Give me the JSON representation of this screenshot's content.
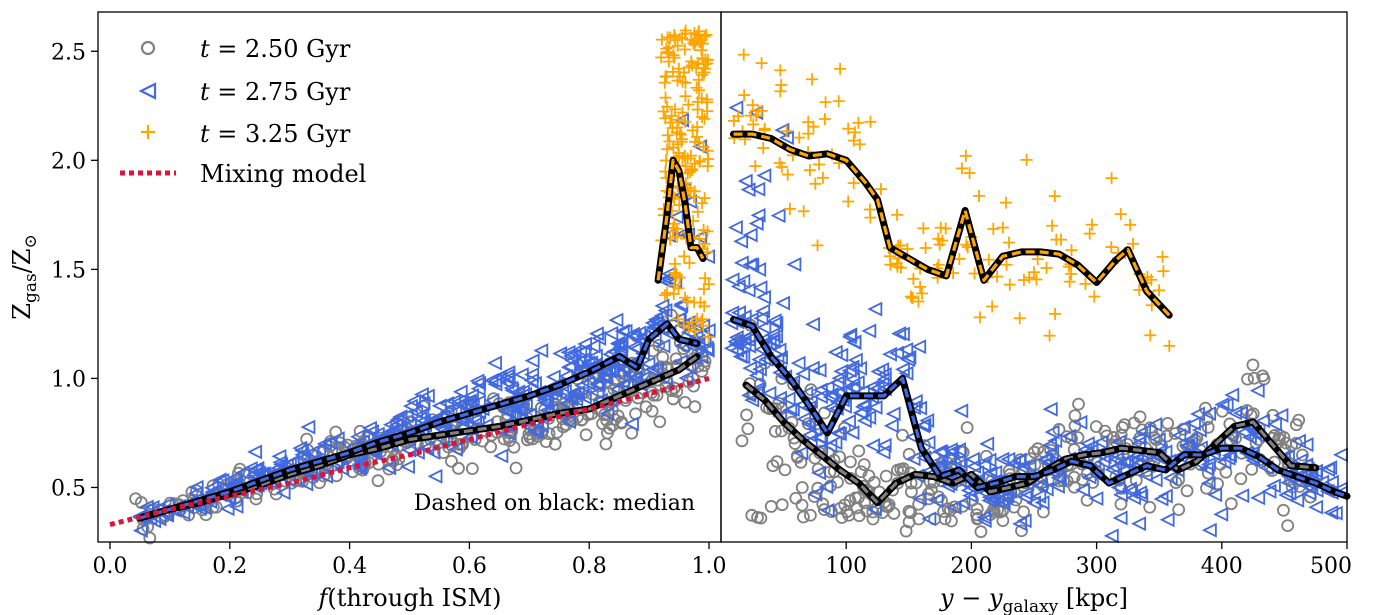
{
  "chart_data": [
    {
      "type": "scatter",
      "xlabel": "f(through ISM)",
      "ylabel": "Z_gas / Z_⊙",
      "xlim": [
        -0.02,
        1.02
      ],
      "ylim": [
        0.25,
        2.68
      ],
      "xticks": [
        0.0,
        0.2,
        0.4,
        0.6,
        0.8,
        1.0
      ],
      "xtick_labels": [
        "0.0",
        "0.2",
        "0.4",
        "0.6",
        "0.8",
        "1.0"
      ],
      "yticks": [
        0.5,
        1.0,
        1.5,
        2.0,
        2.5
      ],
      "ytick_labels": [
        "0.5",
        "1.0",
        "1.5",
        "2.0",
        "2.5"
      ],
      "annotation": "Dashed on black: median",
      "grid": false,
      "legend": {
        "placement": "top-left",
        "entries": [
          {
            "label_prefix": "t",
            "label_suffix": " = 2.50 Gyr",
            "marker": "circle",
            "color": "#808080"
          },
          {
            "label_prefix": "t",
            "label_suffix": " = 2.75 Gyr",
            "marker": "triangle-left",
            "color": "#4169E1"
          },
          {
            "label_prefix": "t",
            "label_suffix": " = 3.25 Gyr",
            "marker": "plus",
            "color": "#FFA500"
          },
          {
            "label_prefix": "",
            "label_suffix": "Mixing model",
            "marker": "dotted-line",
            "color": "#DC143C"
          }
        ]
      },
      "series": [
        {
          "name": "t = 2.50 Gyr",
          "color": "#808080",
          "median_x": [
            0.05,
            0.1,
            0.15,
            0.2,
            0.25,
            0.3,
            0.35,
            0.4,
            0.45,
            0.5,
            0.55,
            0.6,
            0.65,
            0.7,
            0.75,
            0.8,
            0.85,
            0.9,
            0.95,
            0.98
          ],
          "median_y": [
            0.36,
            0.4,
            0.43,
            0.47,
            0.51,
            0.56,
            0.6,
            0.65,
            0.68,
            0.72,
            0.74,
            0.76,
            0.78,
            0.81,
            0.84,
            0.86,
            0.92,
            0.98,
            1.04,
            1.1
          ]
        },
        {
          "name": "t = 2.75 Gyr",
          "color": "#4169E1",
          "median_x": [
            0.05,
            0.1,
            0.15,
            0.2,
            0.25,
            0.3,
            0.35,
            0.4,
            0.45,
            0.5,
            0.55,
            0.6,
            0.65,
            0.7,
            0.75,
            0.8,
            0.85,
            0.88,
            0.9,
            0.93,
            0.95,
            0.98
          ],
          "median_y": [
            0.36,
            0.4,
            0.44,
            0.48,
            0.53,
            0.58,
            0.62,
            0.66,
            0.71,
            0.75,
            0.8,
            0.84,
            0.88,
            0.92,
            0.97,
            1.03,
            1.1,
            1.05,
            1.18,
            1.25,
            1.18,
            1.16
          ]
        },
        {
          "name": "t = 3.25 Gyr",
          "color": "#FFA500",
          "median_x": [
            0.915,
            0.93,
            0.94,
            0.95,
            0.96,
            0.97,
            0.98,
            0.99
          ],
          "median_y": [
            1.45,
            1.75,
            2.0,
            1.95,
            1.8,
            1.6,
            1.6,
            1.55
          ]
        },
        {
          "name": "Mixing model",
          "color": "#DC143C",
          "x": [
            0.0,
            0.1,
            0.2,
            0.3,
            0.4,
            0.5,
            0.6,
            0.7,
            0.8,
            0.9,
            1.0
          ],
          "y": [
            0.33,
            0.4,
            0.46,
            0.52,
            0.59,
            0.65,
            0.72,
            0.79,
            0.86,
            0.93,
            1.0
          ]
        }
      ]
    },
    {
      "type": "scatter",
      "xlabel": "y − y_galaxy [kpc]",
      "ylabel": "",
      "xlim": [
        0,
        500
      ],
      "ylim": [
        0.25,
        2.68
      ],
      "xticks": [
        100,
        200,
        300,
        400,
        500
      ],
      "xtick_labels": [
        "100",
        "200",
        "300",
        "400",
        "500"
      ],
      "grid": false,
      "series": [
        {
          "name": "t = 2.50 Gyr",
          "color": "#808080",
          "median_x": [
            20,
            35,
            50,
            65,
            80,
            95,
            110,
            125,
            140,
            155,
            170,
            185,
            200,
            215,
            230,
            245,
            260,
            275,
            290,
            305,
            320,
            335,
            350,
            365,
            380,
            395,
            410,
            425,
            440,
            455,
            475
          ],
          "median_y": [
            0.97,
            0.9,
            0.8,
            0.72,
            0.65,
            0.58,
            0.52,
            0.43,
            0.52,
            0.56,
            0.55,
            0.52,
            0.56,
            0.48,
            0.5,
            0.52,
            0.58,
            0.63,
            0.65,
            0.66,
            0.68,
            0.67,
            0.66,
            0.58,
            0.62,
            0.7,
            0.78,
            0.8,
            0.7,
            0.6,
            0.59
          ]
        },
        {
          "name": "t = 2.75 Gyr",
          "color": "#4169E1",
          "median_x": [
            10,
            25,
            40,
            55,
            70,
            85,
            100,
            115,
            130,
            145,
            160,
            175,
            190,
            205,
            220,
            235,
            250,
            265,
            280,
            295,
            310,
            325,
            340,
            355,
            370,
            385,
            400,
            415,
            430,
            445,
            460,
            475,
            490,
            500
          ],
          "median_y": [
            1.27,
            1.24,
            1.1,
            1.0,
            0.88,
            0.75,
            0.92,
            0.92,
            0.92,
            1.0,
            0.68,
            0.55,
            0.58,
            0.5,
            0.52,
            0.55,
            0.55,
            0.58,
            0.62,
            0.6,
            0.52,
            0.56,
            0.6,
            0.58,
            0.65,
            0.65,
            0.68,
            0.68,
            0.64,
            0.58,
            0.55,
            0.52,
            0.48,
            0.46
          ]
        },
        {
          "name": "t = 3.25 Gyr",
          "color": "#FFA500",
          "median_x": [
            10,
            25,
            40,
            55,
            70,
            85,
            100,
            115,
            125,
            135,
            150,
            165,
            180,
            195,
            210,
            225,
            240,
            255,
            270,
            285,
            300,
            315,
            325,
            340,
            358
          ],
          "median_y": [
            2.12,
            2.12,
            2.1,
            2.05,
            2.02,
            2.03,
            2.0,
            1.9,
            1.82,
            1.6,
            1.55,
            1.5,
            1.47,
            1.77,
            1.45,
            1.56,
            1.58,
            1.58,
            1.57,
            1.52,
            1.44,
            1.54,
            1.59,
            1.4,
            1.29
          ]
        }
      ]
    }
  ]
}
